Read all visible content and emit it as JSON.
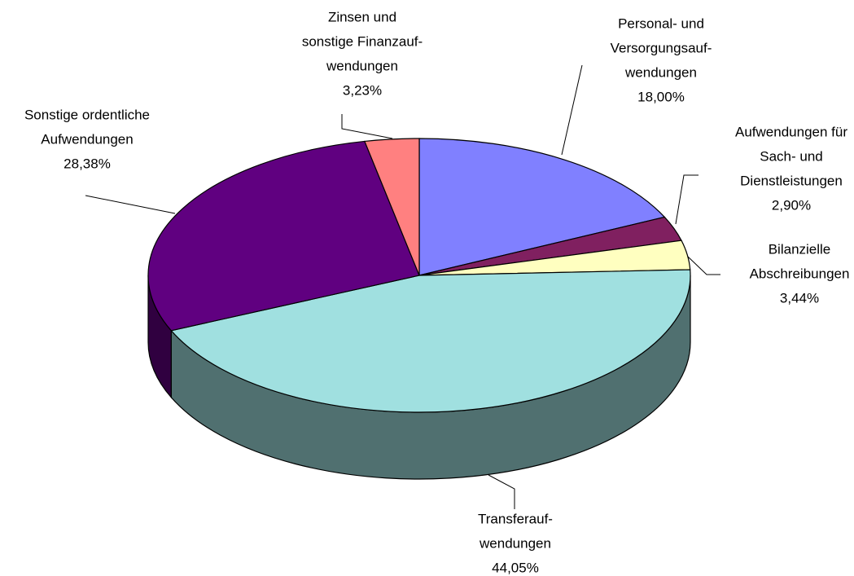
{
  "chart_data": {
    "type": "pie3d",
    "categories": [
      [
        "Personal- und",
        "Versorgungsauf-",
        "wendungen"
      ],
      [
        "Aufwendungen für",
        "Sach- und",
        "Dienstleistungen"
      ],
      [
        "Bilanzielle",
        "Abschreibungen"
      ],
      [
        "Transferauf-",
        "wendungen"
      ],
      [
        "Sonstige ordentliche",
        "Aufwendungen"
      ],
      [
        "Zinsen und",
        "sonstige Finanzauf-",
        "wendungen"
      ]
    ],
    "values": [
      18.0,
      2.9,
      3.44,
      44.05,
      28.38,
      3.23
    ],
    "value_labels": [
      "18,00%",
      "2,90%",
      "3,44%",
      "44,05%",
      "28,38%",
      "3,23%"
    ],
    "colors": [
      "#8080ff",
      "#802060",
      "#ffffc0",
      "#a0e0e0",
      "#600080",
      "#ff8080"
    ]
  }
}
